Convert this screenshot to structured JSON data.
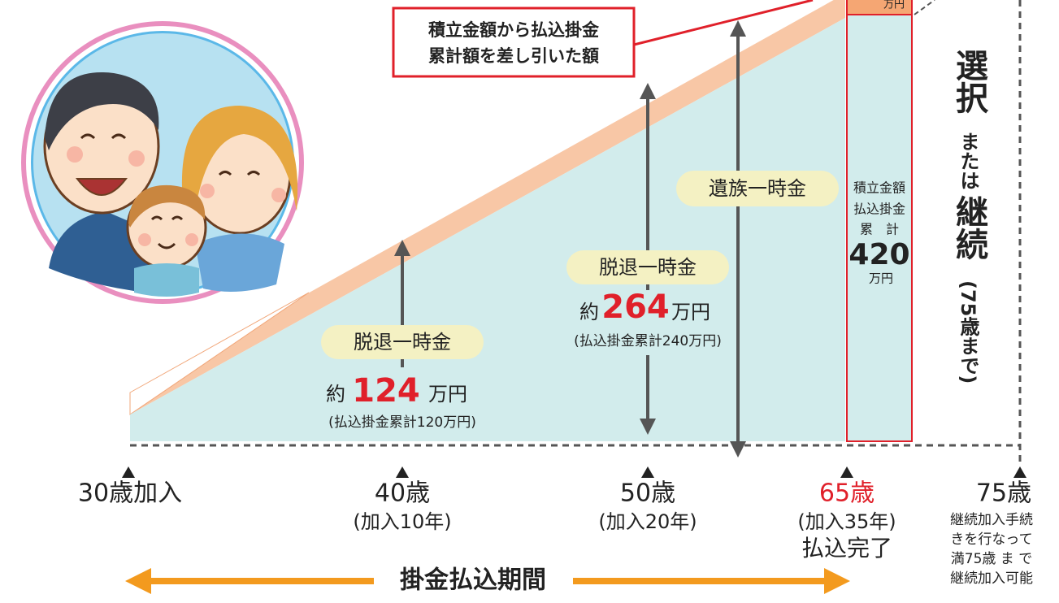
{
  "callout": {
    "lines": [
      "積立金額から払込掛金",
      "累計額を差し引いた額"
    ]
  },
  "bar": {
    "top_unit": "万円",
    "lines": [
      "積立金額",
      "払込掛金",
      "累　計"
    ],
    "amount": "420",
    "unit": "万円"
  },
  "points": [
    {
      "age": "30歳加入"
    },
    {
      "age": "40歳",
      "note": "(加入10年)",
      "pill": "脱退一時金",
      "prefix": "約",
      "amount": "124",
      "unit": "万円",
      "total": "(払込掛金累計120万円)"
    },
    {
      "age": "50歳",
      "note": "(加入20年)",
      "pill": "脱退一時金",
      "prefix": "約",
      "amount": "264",
      "unit": "万円",
      "total": "(払込掛金累計240万円)"
    },
    {
      "age": "65歳",
      "note": "(加入35年)",
      "note2": "払込完了"
    },
    {
      "age": "75歳",
      "notes": [
        "継続加入手続",
        "きを行なって",
        "満75歳 ま で",
        "継続加入可能"
      ]
    }
  ],
  "survivor_pill": "遺族一時金",
  "side": {
    "choose": "選択",
    "or": "または",
    "continue": "継続",
    "limit": "(75歳まで)"
  },
  "period": "掛金払込期間"
}
